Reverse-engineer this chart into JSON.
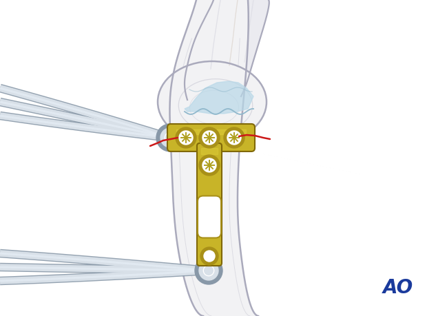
{
  "bg_color": "#ffffff",
  "bone_color": "#f2f2f4",
  "bone_outline": "#aaaabc",
  "bone_cortex": "#c8c8d8",
  "cartilage_color": "#b8d8e8",
  "cartilage_outline": "#90b8cc",
  "plate_fill": "#c8b428",
  "plate_shade": "#a89018",
  "plate_outline": "#806808",
  "plate_light": "#e8d840",
  "screw_inner": "#ffffff",
  "screw_cross": "#b0a020",
  "fracture_color": "#cc1818",
  "inst_fill": "#d8e0e8",
  "inst_grad": "#e8f0f8",
  "inst_outline": "#8898a8",
  "inst_dark": "#b0b8c8",
  "ao_color": "#1a3a9c",
  "figsize": [
    6.2,
    4.59
  ],
  "dpi": 100
}
